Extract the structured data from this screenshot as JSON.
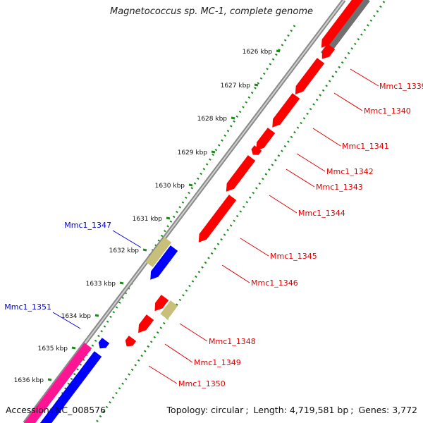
{
  "title": "Magnetococcus sp. MC-1, complete genome",
  "footer": {
    "accession_label": "Accession:",
    "accession_value": "NC_008576",
    "topology_label": "Topology:",
    "topology_value": "circular",
    "length_label": "Length:",
    "length_value": "4,719,581 bp",
    "genes_label": "Genes:",
    "genes_value": "3,772"
  },
  "colors": {
    "backbone": "#8a8a8a",
    "gene_red": "#ff0000",
    "gene_blue": "#0000ff",
    "gene_khaki": "#c8c07a",
    "gene_pink": "#ff1493",
    "gene_gray": "#707070",
    "dotted_track": "#1a8a1a",
    "label_red": "#dd0000",
    "label_blue": "#0000cc"
  },
  "ticks": [
    {
      "label": "1626 kbp"
    },
    {
      "label": "1627 kbp"
    },
    {
      "label": "1628 kbp"
    },
    {
      "label": "1629 kbp"
    },
    {
      "label": "1630 kbp"
    },
    {
      "label": "1631 kbp"
    },
    {
      "label": "1632 kbp"
    },
    {
      "label": "1633 kbp"
    },
    {
      "label": "1634 kbp"
    },
    {
      "label": "1635 kbp"
    },
    {
      "label": "1636 kbp"
    }
  ],
  "genes": [
    {
      "name": "Mmc1_1339",
      "label_color": "red",
      "color": "red"
    },
    {
      "name": "Mmc1_1340",
      "label_color": "red",
      "color": "red"
    },
    {
      "name": "Mmc1_1341",
      "label_color": "red",
      "color": "red"
    },
    {
      "name": "Mmc1_1342",
      "label_color": "red",
      "color": "red"
    },
    {
      "name": "Mmc1_1343",
      "label_color": "red",
      "color": "red"
    },
    {
      "name": "Mmc1_1344",
      "label_color": "red",
      "color": "red"
    },
    {
      "name": "Mmc1_1345",
      "label_color": "red",
      "color": "red"
    },
    {
      "name": "Mmc1_1346",
      "label_color": "red",
      "color": "red"
    },
    {
      "name": "Mmc1_1347",
      "label_color": "blue",
      "color": "blue"
    },
    {
      "name": "Mmc1_1348",
      "label_color": "red",
      "color": "red"
    },
    {
      "name": "Mmc1_1349",
      "label_color": "red",
      "color": "red"
    },
    {
      "name": "Mmc1_1350",
      "label_color": "red",
      "color": "red"
    },
    {
      "name": "Mmc1_1351",
      "label_color": "blue",
      "color": "blue"
    }
  ]
}
